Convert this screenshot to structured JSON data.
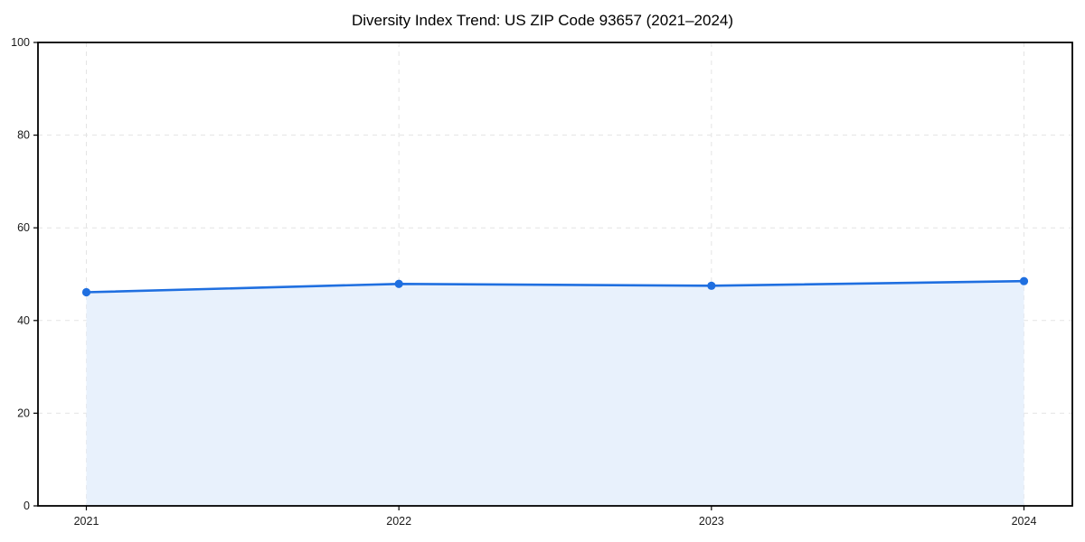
{
  "page": {
    "background": "#ffffff"
  },
  "chart_data": {
    "type": "area",
    "title": "Diversity Index Trend: US ZIP Code 93657 (2021–2024)",
    "series_name": "Diversity Index",
    "x_labels": [
      "2021",
      "2022",
      "2023",
      "2024"
    ],
    "values": [
      46.1,
      47.9,
      47.5,
      48.5
    ],
    "xlabel": "",
    "ylabel": "",
    "ylim": [
      0,
      100
    ],
    "yticks": [
      0,
      20,
      40,
      60,
      80,
      100
    ],
    "grid": "dashed",
    "legend_position": "none",
    "colors": {
      "line": "#1f6fe0",
      "marker": "#1f6fe0",
      "fill": "#e8f1fc",
      "grid": "#e4e4e4",
      "spine": "#000000",
      "tick_label": "#1a1a1a",
      "title": "#000000"
    }
  }
}
